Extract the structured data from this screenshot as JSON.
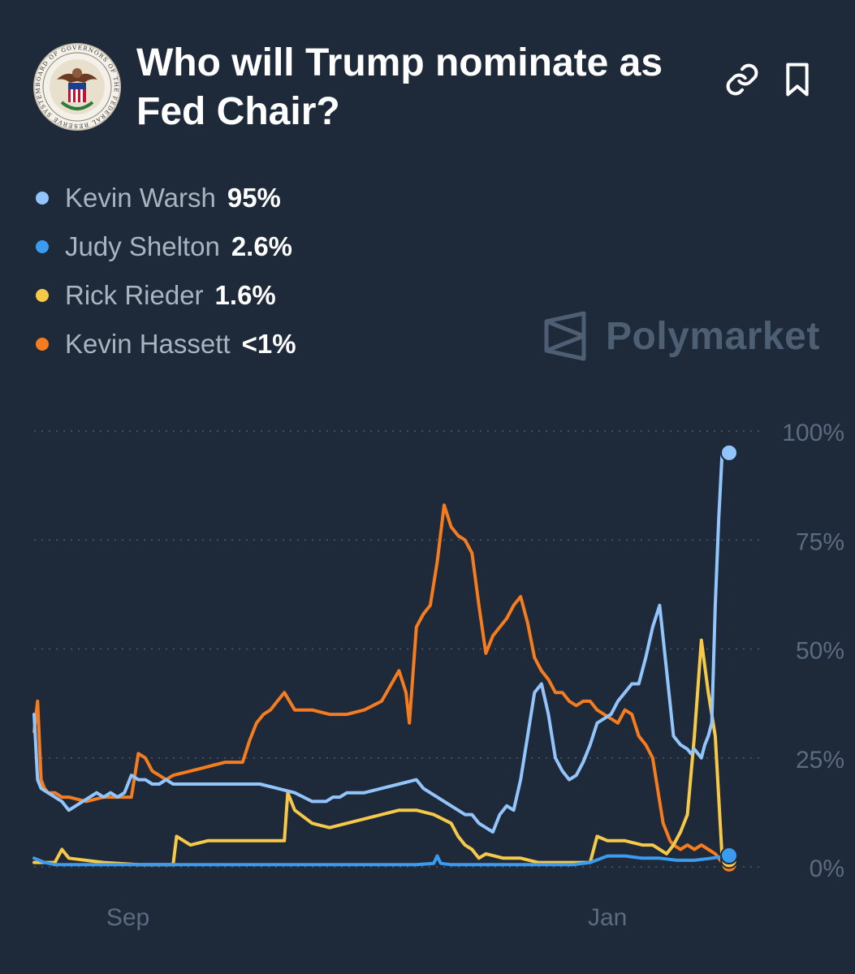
{
  "header": {
    "title": "Who will Trump nominate as Fed Chair?",
    "seal_text": "BOARD OF GOVERNORS OF THE FEDERAL RESERVE SYSTEM"
  },
  "brand": {
    "name": "Polymarket"
  },
  "icons": {
    "link": "link-icon",
    "bookmark": "bookmark-icon",
    "brand": "polymarket-logo-icon"
  },
  "legend": [
    {
      "name": "Kevin Warsh",
      "value": "95%",
      "color": "#93c5fd"
    },
    {
      "name": "Judy Shelton",
      "value": "2.6%",
      "color": "#3b9bf0"
    },
    {
      "name": "Rick Rieder",
      "value": "1.6%",
      "color": "#f7c948"
    },
    {
      "name": "Kevin Hassett",
      "value": "<1%",
      "color": "#f57c1f"
    }
  ],
  "chart_data": {
    "type": "line",
    "title": "Who will Trump nominate as Fed Chair?",
    "y_tick_labels": [
      "0%",
      "25%",
      "50%",
      "75%",
      "100%"
    ],
    "x_tick_labels": [
      "Sep",
      "Jan"
    ],
    "ylim": [
      0,
      100
    ],
    "x_range_days": [
      0,
      200
    ],
    "x_ticks_days": [
      27,
      165
    ],
    "grid": "horizontal-dotted",
    "series": [
      {
        "name": "Kevin Warsh",
        "color": "#93c5fd",
        "x": [
          0,
          1,
          2,
          4,
          6,
          8,
          10,
          12,
          14,
          16,
          18,
          20,
          22,
          24,
          26,
          28,
          30,
          32,
          34,
          36,
          38,
          40,
          45,
          50,
          55,
          60,
          65,
          70,
          75,
          80,
          84,
          86,
          88,
          90,
          95,
          100,
          105,
          110,
          112,
          114,
          116,
          118,
          120,
          122,
          124,
          126,
          128,
          130,
          132,
          134,
          136,
          138,
          140,
          142,
          144,
          146,
          148,
          150,
          152,
          154,
          156,
          158,
          160,
          162,
          164,
          166,
          168,
          170,
          172,
          174,
          176,
          178,
          180,
          182,
          184,
          186,
          188,
          189,
          190,
          191,
          192,
          193,
          194,
          195,
          196,
          197,
          198,
          199,
          200
        ],
        "values": [
          35,
          20,
          18,
          17,
          16,
          15,
          13,
          14,
          15,
          16,
          17,
          16,
          17,
          16,
          17,
          21,
          20,
          20,
          19,
          19,
          20,
          19,
          19,
          19,
          19,
          19,
          19,
          18,
          17,
          15,
          15,
          16,
          16,
          17,
          17,
          18,
          19,
          20,
          18,
          17,
          16,
          15,
          14,
          13,
          12,
          12,
          10,
          9,
          8,
          12,
          14,
          13,
          20,
          30,
          40,
          42,
          35,
          25,
          22,
          20,
          21,
          24,
          28,
          33,
          34,
          35,
          38,
          40,
          42,
          42,
          48,
          55,
          60,
          45,
          30,
          28,
          27,
          26,
          27,
          26,
          25,
          28,
          30,
          33,
          60,
          80,
          95,
          95,
          95
        ]
      },
      {
        "name": "Judy Shelton",
        "color": "#3b9bf0",
        "x": [
          0,
          3,
          6,
          10,
          20,
          30,
          40,
          50,
          60,
          70,
          80,
          90,
          100,
          110,
          115,
          116,
          117,
          120,
          130,
          140,
          150,
          155,
          160,
          165,
          170,
          175,
          180,
          185,
          190,
          195,
          200
        ],
        "values": [
          2,
          1,
          0.5,
          0.5,
          0.5,
          0.5,
          0.5,
          0.5,
          0.5,
          0.5,
          0.5,
          0.5,
          0.5,
          0.5,
          0.8,
          2.5,
          0.8,
          0.5,
          0.5,
          0.5,
          0.5,
          0.5,
          1,
          2.5,
          2.5,
          2,
          2,
          1.5,
          1.5,
          2,
          2.6
        ]
      },
      {
        "name": "Rick Rieder",
        "color": "#f7c948",
        "x": [
          0,
          2,
          4,
          6,
          8,
          10,
          20,
          30,
          35,
          40,
          41,
          45,
          50,
          60,
          70,
          72,
          73,
          75,
          80,
          85,
          90,
          95,
          100,
          105,
          110,
          115,
          120,
          122,
          124,
          126,
          128,
          130,
          135,
          140,
          145,
          150,
          155,
          160,
          162,
          165,
          170,
          175,
          178,
          180,
          182,
          184,
          186,
          188,
          190,
          192,
          194,
          196,
          198,
          200
        ],
        "values": [
          1,
          1,
          1,
          1,
          4,
          2,
          1,
          0.5,
          0.5,
          0.5,
          7,
          5,
          6,
          6,
          6,
          6,
          17,
          13,
          10,
          9,
          10,
          11,
          12,
          13,
          13,
          12,
          10,
          7,
          5,
          4,
          2,
          3,
          2,
          2,
          1,
          1,
          1,
          1,
          7,
          6,
          6,
          5,
          5,
          4,
          3,
          5,
          8,
          12,
          30,
          52,
          40,
          30,
          2,
          1.6
        ]
      },
      {
        "name": "Kevin Hassett",
        "color": "#f57c1f",
        "x": [
          0,
          1,
          2,
          3,
          4,
          6,
          8,
          10,
          15,
          20,
          25,
          28,
          30,
          32,
          34,
          36,
          38,
          40,
          45,
          50,
          55,
          60,
          62,
          64,
          66,
          68,
          70,
          72,
          75,
          80,
          85,
          90,
          95,
          100,
          105,
          107,
          108,
          110,
          112,
          114,
          116,
          118,
          120,
          122,
          124,
          126,
          128,
          130,
          132,
          134,
          136,
          138,
          140,
          142,
          144,
          146,
          148,
          150,
          152,
          154,
          156,
          158,
          160,
          162,
          164,
          166,
          168,
          170,
          172,
          174,
          176,
          178,
          180,
          181,
          182,
          183,
          184,
          186,
          188,
          190,
          192,
          194,
          196,
          198,
          200
        ],
        "values": [
          31,
          38,
          20,
          18,
          17,
          17,
          16,
          16,
          15,
          16,
          16,
          16,
          26,
          25,
          22,
          21,
          20,
          21,
          22,
          23,
          24,
          24,
          29,
          33,
          35,
          36,
          38,
          40,
          36,
          36,
          35,
          35,
          36,
          38,
          45,
          40,
          33,
          55,
          58,
          60,
          70,
          83,
          78,
          76,
          75,
          72,
          60,
          49,
          53,
          55,
          57,
          60,
          62,
          56,
          48,
          45,
          43,
          40,
          40,
          38,
          37,
          38,
          38,
          36,
          35,
          34,
          33,
          36,
          35,
          30,
          28,
          25,
          15,
          10,
          8,
          6,
          5,
          4,
          5,
          4,
          5,
          4,
          3,
          1,
          0.6
        ]
      }
    ]
  }
}
